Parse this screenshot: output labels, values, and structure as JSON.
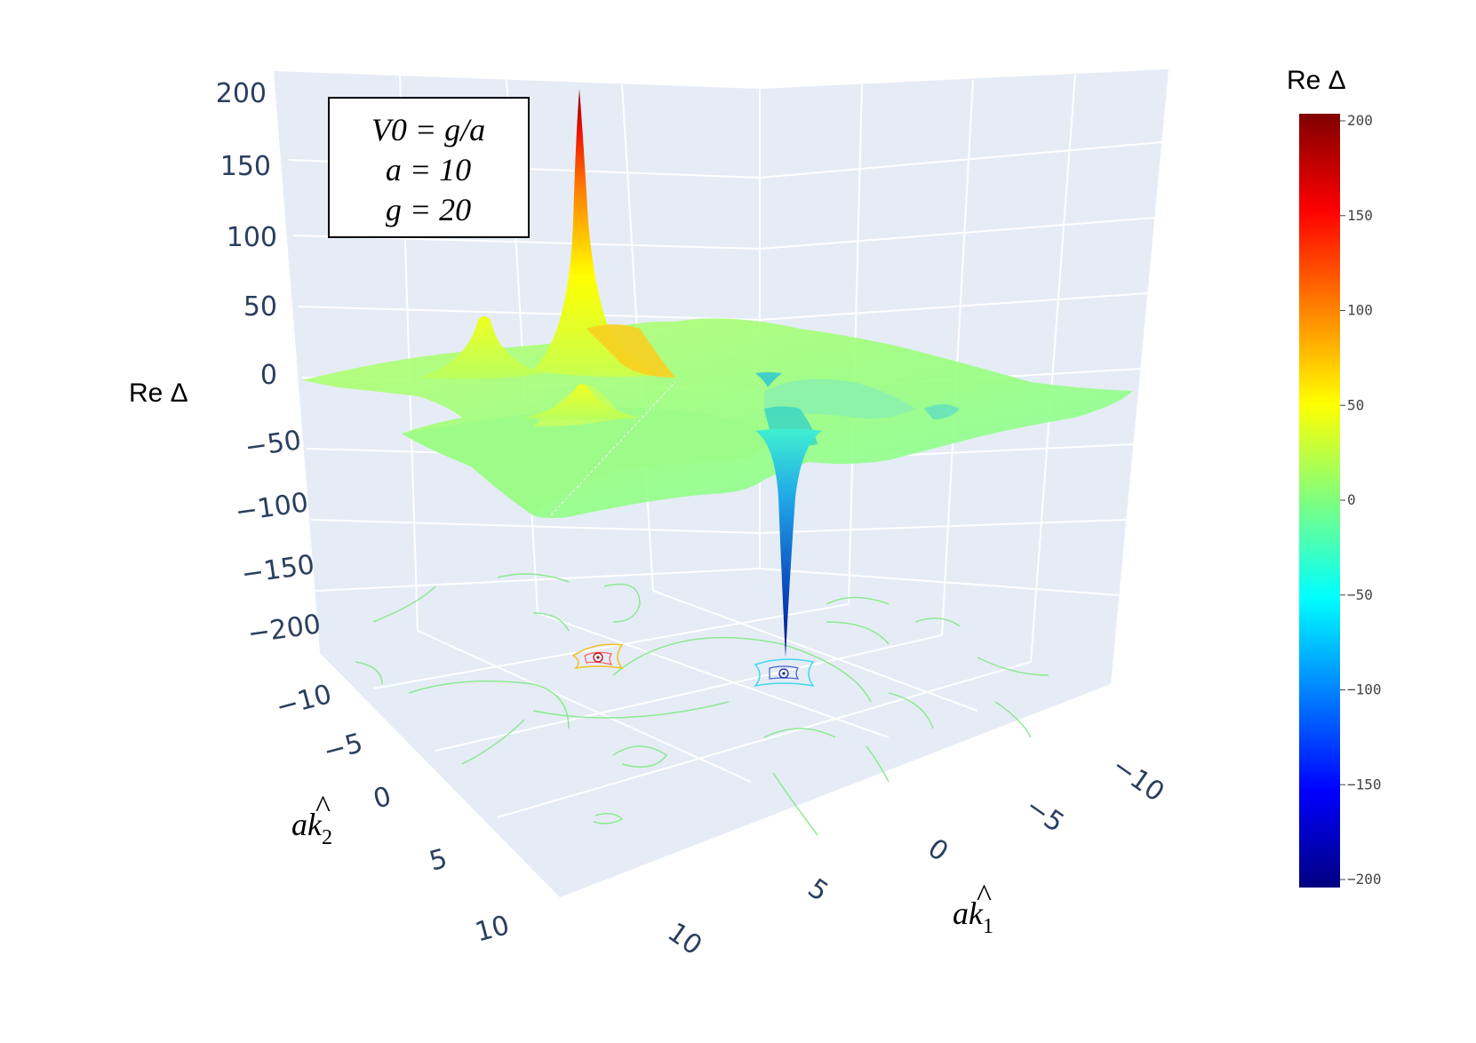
{
  "chart_data": {
    "type": "surface",
    "zlabel": "Re Δ",
    "xlabel": "ak̂1",
    "ylabel": "ak̂2",
    "x_ticks": [
      "−10",
      "−5",
      "0",
      "5",
      "10"
    ],
    "y_ticks": [
      "−10",
      "−5",
      "0",
      "5",
      "10"
    ],
    "z_ticks": [
      "200",
      "150",
      "100",
      "50",
      "0",
      "−50",
      "−100",
      "−150",
      "−200"
    ],
    "xlim": [
      -10,
      10
    ],
    "ylim": [
      -10,
      10
    ],
    "zlim": [
      -200,
      200
    ],
    "colorbar": {
      "title": "Re Δ",
      "ticks": [
        "200",
        "150",
        "100",
        "50",
        "0",
        "−50",
        "−100",
        "−150",
        "−200"
      ],
      "range": [
        -200,
        200
      ],
      "colorscale": "jet"
    },
    "annotation": [
      "V0 = g/a",
      "a = 10",
      "g = 20"
    ],
    "features": [
      {
        "label": "peak",
        "value": 200
      },
      {
        "label": "minor-peak",
        "value": 50
      },
      {
        "label": "dip",
        "value": -200
      }
    ],
    "projection_contours": true,
    "grid": true
  },
  "colors": {
    "pane": "#e5ecf6",
    "grid": "#ffffff",
    "tick": "#2a3f5f"
  }
}
